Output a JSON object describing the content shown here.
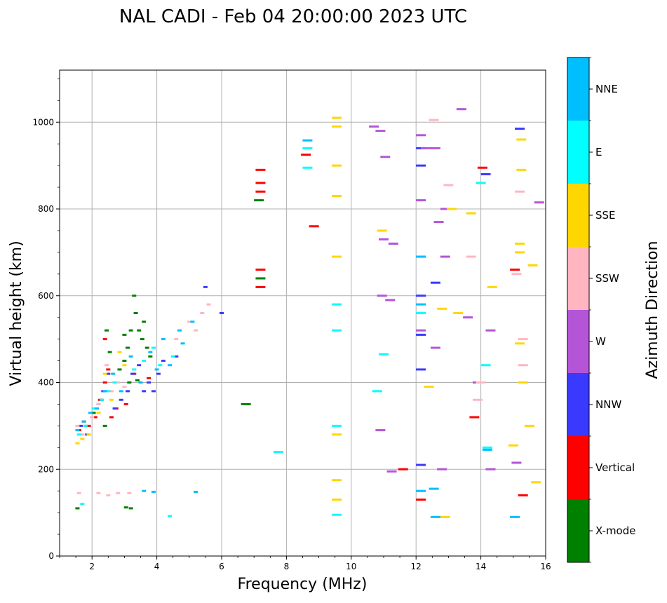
{
  "chart_data": {
    "type": "scatter",
    "title": "NAL CADI - Feb 04 20:00:00 2023 UTC",
    "xlabel": "Frequency (MHz)",
    "ylabel": "Virtual height (km)",
    "xlim": [
      1,
      16
    ],
    "ylim": [
      0,
      1120
    ],
    "x_ticks": [
      2,
      4,
      6,
      8,
      10,
      12,
      14,
      16
    ],
    "x_tick_labels": [
      "2",
      "4",
      "6",
      "8",
      "10",
      "12",
      "14",
      "16"
    ],
    "y_ticks": [
      0,
      200,
      400,
      600,
      800,
      1000
    ],
    "y_tick_labels": [
      "0",
      "200",
      "400",
      "600",
      "800",
      "1000"
    ],
    "grid": true,
    "colorbar": {
      "label": "Azimuth Direction",
      "categories": [
        {
          "name": "X-mode",
          "color": "#008000"
        },
        {
          "name": "Vertical",
          "color": "#ff0000"
        },
        {
          "name": "NNW",
          "color": "#3a3aff"
        },
        {
          "name": "W",
          "color": "#b455d8"
        },
        {
          "name": "SSW",
          "color": "#ffb6c1"
        },
        {
          "name": "SSE",
          "color": "#ffd700"
        },
        {
          "name": "E",
          "color": "#00ffff"
        },
        {
          "name": "NNE",
          "color": "#00bfff"
        }
      ]
    },
    "series": [
      {
        "name": "X-mode",
        "points": [
          [
            1.6,
            290
          ],
          [
            1.8,
            300
          ],
          [
            2.05,
            330
          ],
          [
            2.3,
            360
          ],
          [
            2.45,
            520
          ],
          [
            2.55,
            470
          ],
          [
            2.85,
            430
          ],
          [
            3.0,
            450
          ],
          [
            3.1,
            480
          ],
          [
            3.15,
            400
          ],
          [
            3.2,
            520
          ],
          [
            3.3,
            600
          ],
          [
            3.35,
            560
          ],
          [
            3.45,
            520
          ],
          [
            3.55,
            500
          ],
          [
            3.6,
            540
          ],
          [
            3.7,
            480
          ],
          [
            3.8,
            460
          ],
          [
            6.75,
            350
          ],
          [
            7.2,
            640
          ],
          [
            7.15,
            820
          ],
          [
            1.55,
            110
          ],
          [
            3.05,
            112
          ],
          [
            3.2,
            110
          ],
          [
            3.4,
            405
          ],
          [
            3.0,
            510
          ],
          [
            2.4,
            300
          ]
        ]
      },
      {
        "name": "Vertical",
        "points": [
          [
            1.6,
            290
          ],
          [
            1.75,
            310
          ],
          [
            1.9,
            300
          ],
          [
            2.1,
            320
          ],
          [
            2.25,
            360
          ],
          [
            2.4,
            400
          ],
          [
            2.5,
            430
          ],
          [
            2.6,
            320
          ],
          [
            2.75,
            340
          ],
          [
            3.05,
            350
          ],
          [
            3.3,
            420
          ],
          [
            3.75,
            410
          ],
          [
            2.4,
            500
          ],
          [
            7.2,
            890
          ],
          [
            7.2,
            860
          ],
          [
            7.2,
            840
          ],
          [
            7.2,
            660
          ],
          [
            7.2,
            620
          ],
          [
            8.85,
            760
          ],
          [
            8.6,
            925
          ],
          [
            11.6,
            200
          ],
          [
            12.15,
            130
          ],
          [
            13.8,
            320
          ],
          [
            14.05,
            895
          ],
          [
            15.3,
            140
          ],
          [
            15.05,
            660
          ]
        ]
      },
      {
        "name": "NNW",
        "points": [
          [
            1.65,
            300
          ],
          [
            1.85,
            280
          ],
          [
            2.2,
            350
          ],
          [
            2.35,
            380
          ],
          [
            2.5,
            420
          ],
          [
            2.7,
            340
          ],
          [
            2.9,
            360
          ],
          [
            3.1,
            380
          ],
          [
            3.25,
            420
          ],
          [
            3.45,
            440
          ],
          [
            3.6,
            380
          ],
          [
            3.75,
            400
          ],
          [
            3.9,
            380
          ],
          [
            4.05,
            420
          ],
          [
            4.2,
            450
          ],
          [
            4.6,
            460
          ],
          [
            5.5,
            620
          ],
          [
            6.0,
            560
          ],
          [
            12.15,
            900
          ],
          [
            12.15,
            940
          ],
          [
            12.15,
            600
          ],
          [
            12.15,
            510
          ],
          [
            12.15,
            430
          ],
          [
            12.6,
            630
          ],
          [
            14.15,
            880
          ],
          [
            15.2,
            985
          ],
          [
            12.15,
            210
          ]
        ]
      },
      {
        "name": "W",
        "points": [
          [
            10.7,
            990
          ],
          [
            10.9,
            980
          ],
          [
            11.05,
            920
          ],
          [
            11.0,
            730
          ],
          [
            11.3,
            720
          ],
          [
            10.95,
            600
          ],
          [
            11.2,
            590
          ],
          [
            12.15,
            970
          ],
          [
            12.3,
            940
          ],
          [
            12.6,
            940
          ],
          [
            12.9,
            800
          ],
          [
            13.4,
            1030
          ],
          [
            12.7,
            770
          ],
          [
            12.9,
            690
          ],
          [
            12.6,
            480
          ],
          [
            13.6,
            550
          ],
          [
            13.9,
            400
          ],
          [
            14.3,
            520
          ],
          [
            10.9,
            290
          ],
          [
            11.25,
            195
          ],
          [
            12.8,
            200
          ],
          [
            14.3,
            200
          ],
          [
            15.1,
            215
          ],
          [
            15.8,
            815
          ],
          [
            12.15,
            820
          ],
          [
            12.15,
            520
          ]
        ]
      },
      {
        "name": "SSW",
        "points": [
          [
            1.55,
            300
          ],
          [
            1.7,
            280
          ],
          [
            2.0,
            320
          ],
          [
            2.2,
            350
          ],
          [
            2.45,
            440
          ],
          [
            2.6,
            380
          ],
          [
            2.8,
            400
          ],
          [
            3.0,
            390
          ],
          [
            4.6,
            500
          ],
          [
            5.0,
            540
          ],
          [
            5.2,
            520
          ],
          [
            5.4,
            560
          ],
          [
            5.6,
            580
          ],
          [
            1.6,
            145
          ],
          [
            2.2,
            145
          ],
          [
            2.5,
            140
          ],
          [
            2.8,
            145
          ],
          [
            3.15,
            145
          ],
          [
            12.55,
            1005
          ],
          [
            13.0,
            855
          ],
          [
            13.7,
            690
          ],
          [
            15.2,
            840
          ],
          [
            15.1,
            650
          ],
          [
            15.3,
            500
          ],
          [
            15.3,
            440
          ],
          [
            13.9,
            360
          ],
          [
            14.0,
            400
          ]
        ]
      },
      {
        "name": "SSE",
        "points": [
          [
            1.55,
            260
          ],
          [
            1.7,
            270
          ],
          [
            1.9,
            280
          ],
          [
            2.2,
            330
          ],
          [
            2.4,
            420
          ],
          [
            2.6,
            360
          ],
          [
            2.85,
            470
          ],
          [
            3.0,
            440
          ],
          [
            9.55,
            1010
          ],
          [
            9.55,
            990
          ],
          [
            9.55,
            900
          ],
          [
            9.55,
            830
          ],
          [
            9.55,
            690
          ],
          [
            9.55,
            280
          ],
          [
            9.55,
            175
          ],
          [
            9.55,
            130
          ],
          [
            10.95,
            750
          ],
          [
            12.8,
            570
          ],
          [
            13.1,
            800
          ],
          [
            13.7,
            790
          ],
          [
            14.35,
            620
          ],
          [
            15.25,
            960
          ],
          [
            15.25,
            890
          ],
          [
            15.2,
            720
          ],
          [
            15.2,
            700
          ],
          [
            15.6,
            670
          ],
          [
            15.2,
            490
          ],
          [
            15.5,
            300
          ],
          [
            15.0,
            255
          ],
          [
            15.3,
            400
          ],
          [
            15.7,
            170
          ],
          [
            12.9,
            90
          ],
          [
            13.3,
            560
          ],
          [
            12.4,
            390
          ]
        ]
      },
      {
        "name": "E",
        "points": [
          [
            1.6,
            280
          ],
          [
            1.8,
            300
          ],
          [
            2.05,
            340
          ],
          [
            2.3,
            360
          ],
          [
            2.5,
            380
          ],
          [
            2.7,
            400
          ],
          [
            3.3,
            430
          ],
          [
            3.6,
            450
          ],
          [
            3.9,
            480
          ],
          [
            4.1,
            440
          ],
          [
            4.5,
            460
          ],
          [
            8.65,
            940
          ],
          [
            8.65,
            895
          ],
          [
            9.55,
            580
          ],
          [
            9.55,
            520
          ],
          [
            9.55,
            300
          ],
          [
            9.55,
            95
          ],
          [
            10.8,
            380
          ],
          [
            11.0,
            465
          ],
          [
            12.15,
            690
          ],
          [
            12.15,
            560
          ],
          [
            14.0,
            860
          ],
          [
            14.15,
            440
          ],
          [
            14.2,
            250
          ],
          [
            7.75,
            240
          ],
          [
            4.4,
            92
          ],
          [
            1.7,
            120
          ]
        ]
      },
      {
        "name": "NNE",
        "points": [
          [
            1.55,
            290
          ],
          [
            1.75,
            310
          ],
          [
            1.95,
            330
          ],
          [
            2.15,
            340
          ],
          [
            2.4,
            380
          ],
          [
            2.65,
            420
          ],
          [
            2.9,
            380
          ],
          [
            3.2,
            460
          ],
          [
            3.5,
            400
          ],
          [
            3.8,
            470
          ],
          [
            4.0,
            430
          ],
          [
            4.2,
            500
          ],
          [
            4.4,
            440
          ],
          [
            4.7,
            520
          ],
          [
            4.8,
            490
          ],
          [
            5.1,
            540
          ],
          [
            3.6,
            150
          ],
          [
            3.9,
            148
          ],
          [
            5.2,
            148
          ],
          [
            8.65,
            958
          ],
          [
            12.15,
            690
          ],
          [
            12.15,
            580
          ],
          [
            12.6,
            90
          ],
          [
            14.2,
            245
          ],
          [
            15.05,
            90
          ],
          [
            12.15,
            150
          ],
          [
            12.55,
            155
          ]
        ]
      }
    ]
  }
}
